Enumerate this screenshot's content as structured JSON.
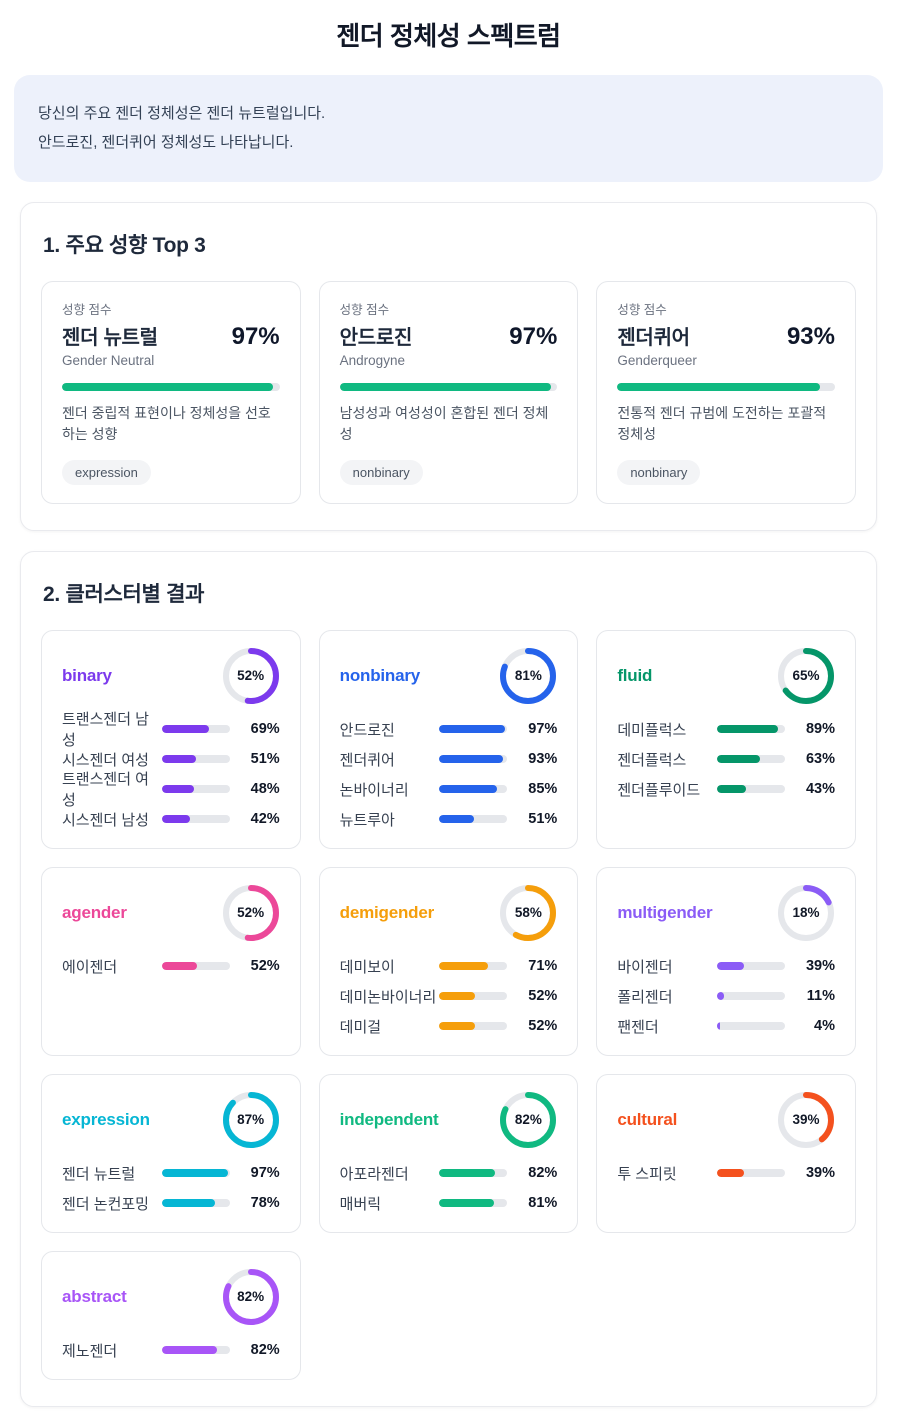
{
  "page": {
    "title": "젠더 정체성 스펙트럼"
  },
  "summary": {
    "line1": "당신의 주요 젠더 정체성은 젠더 뉴트럴입니다.",
    "line2": "안드로진, 젠더퀴어 정체성도 나타납니다."
  },
  "sections": {
    "top3_title": "1. 주요 성향 Top 3",
    "clusters_title": "2. 클러스터별 결과"
  },
  "top3": {
    "score_label": "성향 점수",
    "bar_color": "#10b981",
    "track_color": "#e5e7eb",
    "cards": [
      {
        "name": "젠더 뉴트럴",
        "percent": 97,
        "percent_label": "97%",
        "english": "Gender Neutral",
        "description": "젠더 중립적 표현이나 정체성을 선호하는 성향",
        "tag": "expression"
      },
      {
        "name": "안드로진",
        "percent": 97,
        "percent_label": "97%",
        "english": "Androgyne",
        "description": "남성성과 여성성이 혼합된 젠더 정체성",
        "tag": "nonbinary"
      },
      {
        "name": "젠더퀴어",
        "percent": 93,
        "percent_label": "93%",
        "english": "Genderqueer",
        "description": "전통적 젠더 규범에 도전하는 포괄적 정체성",
        "tag": "nonbinary"
      }
    ]
  },
  "clusters": [
    {
      "name": "binary",
      "color": "#7c3aed",
      "percent": 52,
      "percent_label": "52%",
      "items": [
        {
          "label": "트랜스젠더 남성",
          "percent": 69,
          "percent_label": "69%"
        },
        {
          "label": "시스젠더 여성",
          "percent": 51,
          "percent_label": "51%"
        },
        {
          "label": "트랜스젠더 여성",
          "percent": 48,
          "percent_label": "48%"
        },
        {
          "label": "시스젠더 남성",
          "percent": 42,
          "percent_label": "42%"
        }
      ]
    },
    {
      "name": "nonbinary",
      "color": "#2563eb",
      "percent": 81,
      "percent_label": "81%",
      "items": [
        {
          "label": "안드로진",
          "percent": 97,
          "percent_label": "97%"
        },
        {
          "label": "젠더퀴어",
          "percent": 93,
          "percent_label": "93%"
        },
        {
          "label": "논바이너리",
          "percent": 85,
          "percent_label": "85%"
        },
        {
          "label": "뉴트루아",
          "percent": 51,
          "percent_label": "51%"
        }
      ]
    },
    {
      "name": "fluid",
      "color": "#059669",
      "percent": 65,
      "percent_label": "65%",
      "items": [
        {
          "label": "데미플럭스",
          "percent": 89,
          "percent_label": "89%"
        },
        {
          "label": "젠더플럭스",
          "percent": 63,
          "percent_label": "63%"
        },
        {
          "label": "젠더플루이드",
          "percent": 43,
          "percent_label": "43%"
        }
      ]
    },
    {
      "name": "agender",
      "color": "#ec4899",
      "percent": 52,
      "percent_label": "52%",
      "items": [
        {
          "label": "에이젠더",
          "percent": 52,
          "percent_label": "52%"
        }
      ]
    },
    {
      "name": "demigender",
      "color": "#f59e0b",
      "percent": 58,
      "percent_label": "58%",
      "items": [
        {
          "label": "데미보이",
          "percent": 71,
          "percent_label": "71%"
        },
        {
          "label": "데미논바이너리",
          "percent": 52,
          "percent_label": "52%"
        },
        {
          "label": "데미걸",
          "percent": 52,
          "percent_label": "52%"
        }
      ]
    },
    {
      "name": "multigender",
      "color": "#8b5cf6",
      "percent": 18,
      "percent_label": "18%",
      "items": [
        {
          "label": "바이젠더",
          "percent": 39,
          "percent_label": "39%"
        },
        {
          "label": "폴리젠더",
          "percent": 11,
          "percent_label": "11%"
        },
        {
          "label": "팬젠더",
          "percent": 4,
          "percent_label": "4%"
        }
      ]
    },
    {
      "name": "expression",
      "color": "#06b6d4",
      "percent": 87,
      "percent_label": "87%",
      "items": [
        {
          "label": "젠더 뉴트럴",
          "percent": 97,
          "percent_label": "97%"
        },
        {
          "label": "젠더 논컨포밍",
          "percent": 78,
          "percent_label": "78%"
        }
      ]
    },
    {
      "name": "independent",
      "color": "#10b981",
      "percent": 82,
      "percent_label": "82%",
      "items": [
        {
          "label": "아포라젠더",
          "percent": 82,
          "percent_label": "82%"
        },
        {
          "label": "매버릭",
          "percent": 81,
          "percent_label": "81%"
        }
      ]
    },
    {
      "name": "cultural",
      "color": "#f4511e",
      "percent": 39,
      "percent_label": "39%",
      "items": [
        {
          "label": "투 스피릿",
          "percent": 39,
          "percent_label": "39%"
        }
      ]
    },
    {
      "name": "abstract",
      "color": "#a855f7",
      "percent": 82,
      "percent_label": "82%",
      "items": [
        {
          "label": "제노젠더",
          "percent": 82,
          "percent_label": "82%"
        }
      ]
    }
  ],
  "chart_data": [
    {
      "type": "bar",
      "title": "1. 주요 성향 Top 3",
      "categories": [
        "젠더 뉴트럴 (Gender Neutral)",
        "안드로진 (Androgyne)",
        "젠더퀴어 (Genderqueer)"
      ],
      "values": [
        97,
        97,
        93
      ],
      "unit": "%",
      "ylim": [
        0,
        100
      ],
      "bar_color": "#10b981"
    },
    {
      "type": "pie",
      "title": "2. 클러스터별 결과 — 클러스터 종합 점수 (donut gauges)",
      "categories": [
        "binary",
        "nonbinary",
        "fluid",
        "agender",
        "demigender",
        "multigender",
        "expression",
        "independent",
        "cultural",
        "abstract"
      ],
      "values": [
        52,
        81,
        65,
        52,
        58,
        18,
        87,
        82,
        39,
        82
      ],
      "unit": "%",
      "ylim": [
        0,
        100
      ],
      "colors": [
        "#7c3aed",
        "#2563eb",
        "#059669",
        "#ec4899",
        "#f59e0b",
        "#8b5cf6",
        "#06b6d4",
        "#10b981",
        "#f4511e",
        "#a855f7"
      ]
    },
    {
      "type": "bar",
      "title": "클러스터별 세부 항목 점수",
      "series": [
        {
          "name": "binary",
          "categories": [
            "트랜스젠더 남성",
            "시스젠더 여성",
            "트랜스젠더 여성",
            "시스젠더 남성"
          ],
          "values": [
            69,
            51,
            48,
            42
          ]
        },
        {
          "name": "nonbinary",
          "categories": [
            "안드로진",
            "젠더퀴어",
            "논바이너리",
            "뉴트루아"
          ],
          "values": [
            97,
            93,
            85,
            51
          ]
        },
        {
          "name": "fluid",
          "categories": [
            "데미플럭스",
            "젠더플럭스",
            "젠더플루이드"
          ],
          "values": [
            89,
            63,
            43
          ]
        },
        {
          "name": "agender",
          "categories": [
            "에이젠더"
          ],
          "values": [
            52
          ]
        },
        {
          "name": "demigender",
          "categories": [
            "데미보이",
            "데미논바이너리",
            "데미걸"
          ],
          "values": [
            71,
            52,
            52
          ]
        },
        {
          "name": "multigender",
          "categories": [
            "바이젠더",
            "폴리젠더",
            "팬젠더"
          ],
          "values": [
            39,
            11,
            4
          ]
        },
        {
          "name": "expression",
          "categories": [
            "젠더 뉴트럴",
            "젠더 논컨포밍"
          ],
          "values": [
            97,
            78
          ]
        },
        {
          "name": "independent",
          "categories": [
            "아포라젠더",
            "매버릭"
          ],
          "values": [
            82,
            81
          ]
        },
        {
          "name": "cultural",
          "categories": [
            "투 스피릿"
          ],
          "values": [
            39
          ]
        },
        {
          "name": "abstract",
          "categories": [
            "제노젠더"
          ],
          "values": [
            82
          ]
        }
      ],
      "unit": "%",
      "ylim": [
        0,
        100
      ]
    }
  ]
}
